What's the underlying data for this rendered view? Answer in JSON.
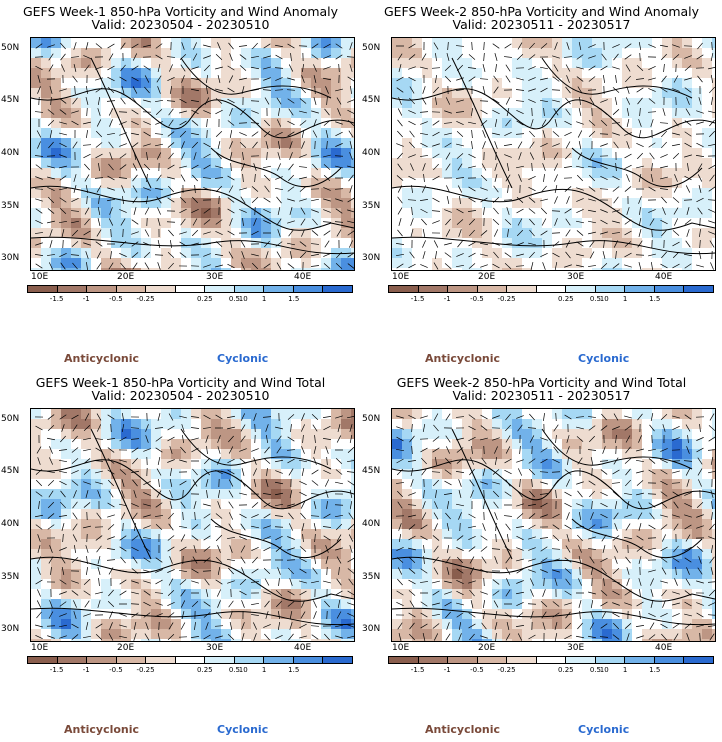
{
  "colors": {
    "anticyclonic": "#7a4a3a",
    "cyclonic": "#2a6ad0",
    "colorbar": [
      "#8a5e4e",
      "#a27868",
      "#bd9684",
      "#d8b8a6",
      "#eedcd0",
      "#ffffff",
      "#d7f0fa",
      "#a6d8f4",
      "#72b2ea",
      "#4a8fe0",
      "#2a6ad0"
    ]
  },
  "panels": [
    {
      "title": "GEFS Week-1 850-hPa Vorticity and Wind Anomaly",
      "valid": "Valid: 20230504 - 20230510"
    },
    {
      "title": "GEFS Week-2 850-hPa Vorticity and Wind Anomaly",
      "valid": "Valid: 20230511 - 20230517"
    },
    {
      "title": "GEFS Week-1 850-hPa Vorticity and Wind Total",
      "valid": "Valid: 20230504 - 20230510"
    },
    {
      "title": "GEFS Week-2 850-hPa Vorticity and Wind Total",
      "valid": "Valid: 20230511 - 20230517"
    }
  ],
  "lat_labels": [
    "50N",
    "45N",
    "40N",
    "35N",
    "30N"
  ],
  "lon_labels": [
    "10E",
    "20E",
    "30E",
    "40E"
  ],
  "colorbar_labels": [
    "-1.5",
    "-1",
    "-0.5",
    "-0.25",
    "0.25",
    "0.5",
    "1",
    "1.5"
  ],
  "colorbar_extra_label": "10",
  "legend": {
    "anticyclonic": "Anticyclonic",
    "cyclonic": "Cyclonic"
  }
}
